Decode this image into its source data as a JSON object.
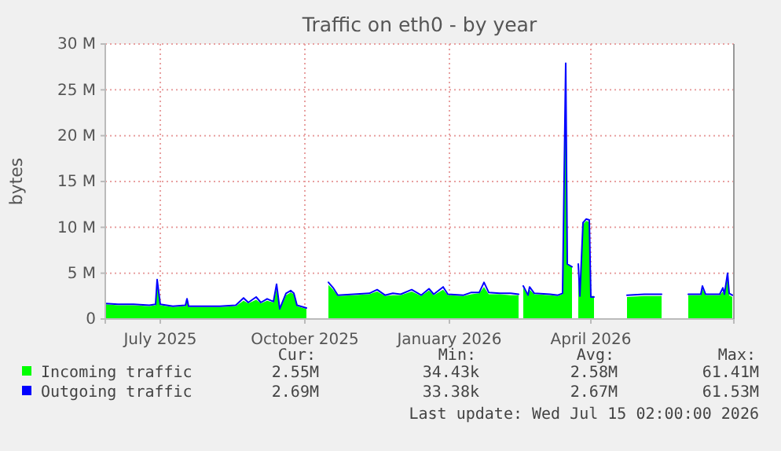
{
  "chart_data": {
    "type": "line",
    "title": "Traffic on eth0 - by year",
    "ylabel": "bytes",
    "x": [
      "2025-06-10",
      "2025-06-18",
      "2025-06-28",
      "2025-07-08",
      "2025-07-12",
      "2025-07-13",
      "2025-07-15",
      "2025-07-23",
      "2025-07-31",
      "2025-08-01",
      "2025-08-02",
      "2025-08-12",
      "2025-08-22",
      "2025-09-01",
      "2025-09-06",
      "2025-09-09",
      "2025-09-14",
      "2025-09-17",
      "2025-09-21",
      "2025-09-25",
      "2025-09-27",
      "2025-09-29",
      "2025-10-03",
      "2025-10-06",
      "2025-10-08",
      "2025-10-10",
      "2025-10-16",
      "2025-10-17",
      "2025-10-29",
      "2025-10-30",
      "2025-11-02",
      "2025-11-05",
      "2025-11-15",
      "2025-11-25",
      "2025-11-30",
      "2025-12-05",
      "2025-12-10",
      "2025-12-15",
      "2025-12-22",
      "2025-12-28",
      "2026-01-02",
      "2026-01-05",
      "2026-01-11",
      "2026-01-14",
      "2026-01-24",
      "2026-01-29",
      "2026-02-03",
      "2026-02-06",
      "2026-02-09",
      "2026-02-16",
      "2026-02-23",
      "2026-02-28",
      "2026-03-01",
      "2026-03-02",
      "2026-03-03",
      "2026-03-06",
      "2026-03-07",
      "2026-03-10",
      "2026-03-20",
      "2026-03-25",
      "2026-03-28",
      "2026-03-30",
      "2026-03-31",
      "2026-04-03",
      "2026-04-04",
      "2026-04-06",
      "2026-04-07",
      "2026-04-08",
      "2026-04-10",
      "2026-04-12",
      "2026-04-14",
      "2026-04-15",
      "2026-04-17",
      "2026-04-18",
      "2026-05-07",
      "2026-05-08",
      "2026-05-19",
      "2026-05-30",
      "2026-05-31",
      "2026-06-15",
      "2026-06-16",
      "2026-06-24",
      "2026-06-25",
      "2026-06-27",
      "2026-07-06",
      "2026-07-08",
      "2026-07-09",
      "2026-07-11",
      "2026-07-12",
      "2026-07-14"
    ],
    "series": [
      {
        "name": "Incoming traffic",
        "type": "area",
        "color": "#00ff00",
        "values": [
          1.6,
          1.5,
          1.5,
          1.4,
          1.5,
          3.8,
          1.5,
          1.3,
          1.4,
          2.0,
          1.3,
          1.3,
          1.3,
          1.4,
          2.0,
          1.7,
          2.1,
          1.7,
          2.0,
          1.8,
          3.3,
          1.0,
          2.6,
          2.9,
          2.7,
          1.4,
          1.1,
          null,
          null,
          3.7,
          3.2,
          2.5,
          2.6,
          2.7,
          3.0,
          2.5,
          2.6,
          2.6,
          3.0,
          2.5,
          3.1,
          2.6,
          3.2,
          2.6,
          2.5,
          2.7,
          2.8,
          3.5,
          2.7,
          2.7,
          2.6,
          2.6,
          null,
          null,
          3.4,
          2.5,
          3.2,
          2.7,
          2.6,
          2.5,
          2.7,
          26.5,
          6.0,
          5.7,
          null,
          null,
          5.5,
          2.3,
          10.3,
          10.7,
          10.6,
          2.5,
          2.5,
          null,
          null,
          2.4,
          2.5,
          2.5,
          null,
          null,
          2.6,
          2.6,
          3.3,
          2.6,
          2.6,
          3.0,
          2.6,
          4.5,
          2.6,
          2.4
        ]
      },
      {
        "name": "Outgoing traffic",
        "color": "#0000ff",
        "values": [
          1.7,
          1.6,
          1.6,
          1.5,
          1.6,
          4.3,
          1.6,
          1.4,
          1.5,
          2.2,
          1.4,
          1.4,
          1.4,
          1.5,
          2.3,
          1.8,
          2.4,
          1.8,
          2.2,
          1.9,
          3.8,
          1.1,
          2.8,
          3.1,
          2.8,
          1.5,
          1.2,
          null,
          null,
          4.0,
          3.4,
          2.6,
          2.7,
          2.8,
          3.2,
          2.6,
          2.8,
          2.7,
          3.2,
          2.6,
          3.3,
          2.7,
          3.5,
          2.7,
          2.6,
          2.9,
          2.9,
          4.0,
          2.9,
          2.8,
          2.8,
          2.7,
          null,
          null,
          3.6,
          2.6,
          3.5,
          2.8,
          2.7,
          2.6,
          2.8,
          27.9,
          6.0,
          5.7,
          null,
          null,
          6.0,
          2.5,
          10.5,
          10.9,
          10.8,
          2.4,
          2.4,
          null,
          null,
          2.6,
          2.7,
          2.7,
          null,
          null,
          2.7,
          2.7,
          3.6,
          2.7,
          2.7,
          3.4,
          2.7,
          5.0,
          2.8,
          2.6
        ]
      }
    ],
    "xlim": [
      "2025-06-10",
      "2026-07-15"
    ],
    "xticks": [
      {
        "value": "2025-07-15",
        "label": "July 2025"
      },
      {
        "value": "2025-10-15",
        "label": "October 2025"
      },
      {
        "value": "2026-01-15",
        "label": "January 2026"
      },
      {
        "value": "2026-04-15",
        "label": "April 2026"
      }
    ],
    "ylim": [
      0,
      30
    ],
    "yticks": [
      0,
      {
        "value": 5,
        "label": "5 M"
      },
      {
        "value": 10,
        "label": "10 M"
      },
      {
        "value": 15,
        "label": "15 M"
      },
      {
        "value": 20,
        "label": "20 M"
      },
      {
        "value": 25,
        "label": "25 M"
      },
      {
        "value": 30,
        "label": "30 M"
      }
    ],
    "grid": true,
    "legend": "bottom",
    "annotations": [
      "Cur:",
      "Min:",
      "Avg:",
      "Max:",
      "2.55M",
      "34.43k",
      "2.58M",
      "61.41M",
      "2.69M",
      "33.38k",
      "2.67M",
      "61.53M",
      "Last update: Wed Jul 15 02:00:00 2026"
    ]
  }
}
